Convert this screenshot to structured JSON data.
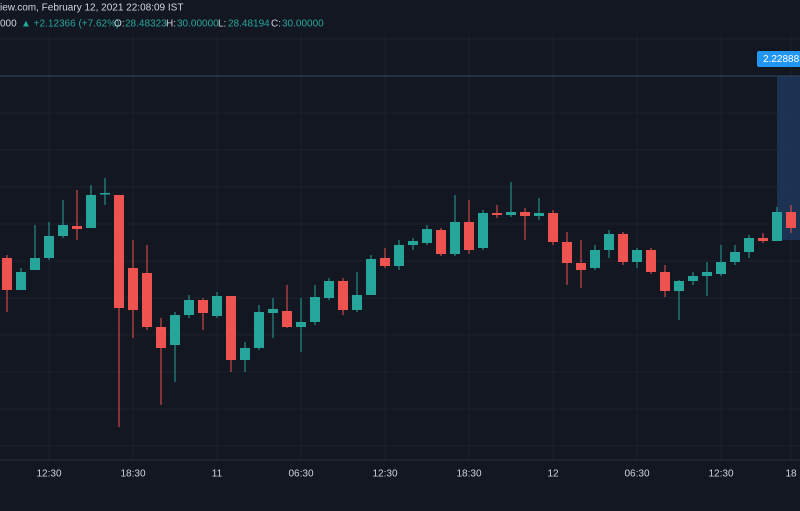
{
  "header": {
    "source_line": "iew.com, February 12, 2021 22:08:09 IST",
    "price_prefix": "000",
    "change": "▲ +2.12366 (+7.62%)",
    "o_label": "O:",
    "o_value": "28.48323",
    "h_label": "H:",
    "h_value": "30.00000",
    "l_label": "L:",
    "l_value": "28.48194",
    "c_label": "C:",
    "c_value": "30.00000"
  },
  "price_tag": "2.22888 (",
  "chart_data": {
    "type": "candlestick",
    "up_color": "#26a69a",
    "down_color": "#ef5350",
    "ylim": [
      0,
      425
    ],
    "categories": [
      null,
      null,
      null,
      "12:30",
      null,
      null,
      null,
      null,
      null,
      "18:30",
      null,
      null,
      null,
      null,
      null,
      "11",
      null,
      null,
      null,
      null,
      null,
      "06:30",
      null,
      null,
      null,
      null,
      null,
      "12:30",
      null,
      null,
      null,
      null,
      null,
      "18:30",
      null,
      null,
      null,
      null,
      null,
      "12",
      null,
      null,
      null,
      null,
      null,
      "06:30",
      null,
      null,
      null,
      null,
      null,
      "12:30",
      null,
      null,
      null,
      null,
      "18"
    ],
    "open": [
      202,
      170,
      190,
      202,
      224,
      234,
      232,
      266,
      265,
      192,
      187,
      133,
      115,
      145,
      160,
      144,
      164,
      100,
      112,
      147,
      149,
      133,
      138,
      162,
      179,
      150,
      165,
      202,
      194,
      215,
      217,
      230,
      206,
      238,
      212,
      247,
      245,
      248,
      244,
      247,
      218,
      197,
      192,
      210,
      226,
      198,
      210,
      188,
      169,
      179,
      184,
      186,
      198,
      208,
      222,
      219,
      248
    ],
    "high": [
      205,
      192,
      235,
      238,
      260,
      270,
      275,
      282,
      265,
      220,
      215,
      142,
      148,
      165,
      162,
      168,
      164,
      118,
      155,
      162,
      175,
      162,
      175,
      182,
      182,
      188,
      205,
      212,
      220,
      222,
      235,
      232,
      265,
      260,
      250,
      255,
      278,
      252,
      262,
      250,
      228,
      220,
      215,
      230,
      228,
      212,
      212,
      195,
      180,
      188,
      198,
      215,
      215,
      225,
      227,
      253,
      255
    ],
    "low": [
      148,
      170,
      190,
      200,
      222,
      220,
      232,
      255,
      33,
      122,
      130,
      55,
      78,
      142,
      130,
      142,
      88,
      88,
      110,
      122,
      132,
      108,
      135,
      160,
      145,
      148,
      165,
      192,
      190,
      210,
      215,
      204,
      204,
      206,
      210,
      242,
      243,
      220,
      240,
      215,
      175,
      172,
      190,
      202,
      195,
      192,
      186,
      163,
      140,
      175,
      164,
      184,
      195,
      202,
      217,
      219,
      227
    ],
    "close": [
      170,
      188,
      202,
      224,
      235,
      231,
      265,
      267,
      152,
      150,
      133,
      112,
      145,
      160,
      147,
      164,
      100,
      112,
      148,
      151,
      133,
      138,
      163,
      179,
      150,
      165,
      201,
      194,
      215,
      219,
      231,
      206,
      238,
      210,
      247,
      245,
      248,
      244,
      247,
      218,
      197,
      190,
      210,
      226,
      198,
      210,
      188,
      169,
      179,
      184,
      188,
      198,
      208,
      222,
      219,
      248,
      232
    ]
  }
}
